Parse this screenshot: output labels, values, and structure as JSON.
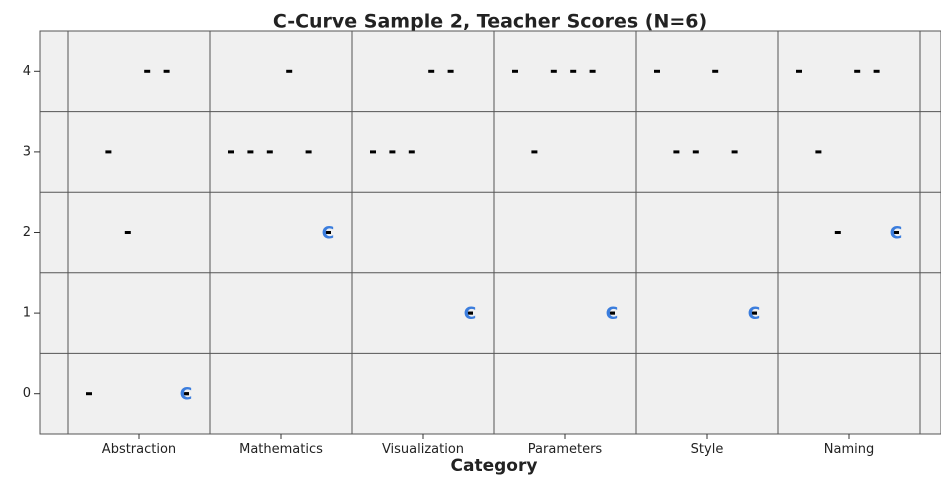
{
  "chart_data": {
    "type": "scatter",
    "title": "C-Curve Sample 2, Teacher Scores (N=6)",
    "x_label": "Category",
    "categories": [
      "Abstraction",
      "Mathematics",
      "Visualization",
      "Parameters",
      "Style",
      "Naming"
    ],
    "series": [
      {
        "color": "#000000",
        "values": [
          0,
          3,
          3,
          4,
          4,
          4
        ]
      },
      {
        "color": "#000000",
        "values": [
          3,
          3,
          3,
          3,
          3,
          3
        ]
      },
      {
        "color": "#000000",
        "values": [
          2,
          3,
          3,
          4,
          3,
          2
        ]
      },
      {
        "color": "#000000",
        "values": [
          4,
          4,
          4,
          4,
          4,
          4
        ]
      },
      {
        "color": "#000000",
        "values": [
          4,
          3,
          4,
          4,
          3,
          4
        ]
      },
      {
        "color": "#000000",
        "values": [
          0,
          2,
          1,
          1,
          1,
          2
        ]
      },
      {
        "color": "#3b7ddd",
        "marker": "C",
        "values": [
          0,
          2,
          1,
          1,
          1,
          2
        ]
      }
    ],
    "ylim": [
      -0.5,
      4.5
    ],
    "yticks": [
      0,
      1,
      2,
      3,
      4
    ],
    "grid": true
  }
}
